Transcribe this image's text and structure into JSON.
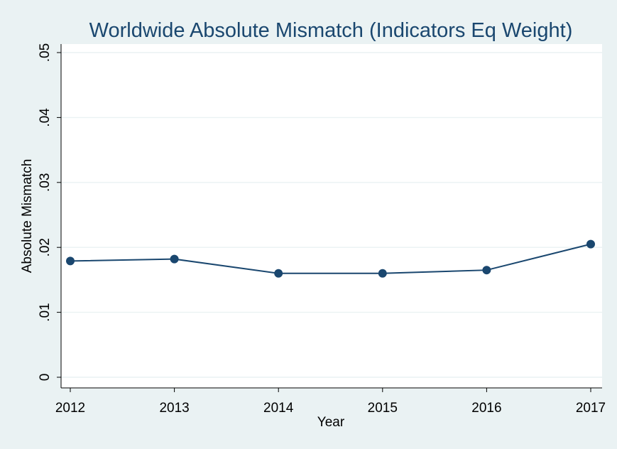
{
  "chart_data": {
    "type": "line",
    "title": "Worldwide Absolute Mismatch (Indicators Eq Weight)",
    "xlabel": "Year",
    "ylabel": "Absolute Mismatch",
    "x": [
      2012,
      2013,
      2014,
      2015,
      2016,
      2017
    ],
    "x_tick_labels": [
      "2012",
      "2013",
      "2014",
      "2015",
      "2016",
      "2017"
    ],
    "xlim": [
      2012,
      2017
    ],
    "y_ticks": [
      0,
      0.01,
      0.02,
      0.03,
      0.04,
      0.05
    ],
    "y_tick_labels": [
      "0",
      ".01",
      ".02",
      ".03",
      ".04",
      ".05"
    ],
    "ylim": [
      0,
      0.05
    ],
    "grid": true,
    "legend": "none",
    "series": [
      {
        "values": [
          0.0179,
          0.0182,
          0.016,
          0.016,
          0.0165,
          0.0205
        ],
        "color": "#1a476f"
      }
    ],
    "colors": {
      "background": "#eaf2f3",
      "plot_area": "#ffffff",
      "title": "#1a476f",
      "series": "#1a476f"
    }
  }
}
